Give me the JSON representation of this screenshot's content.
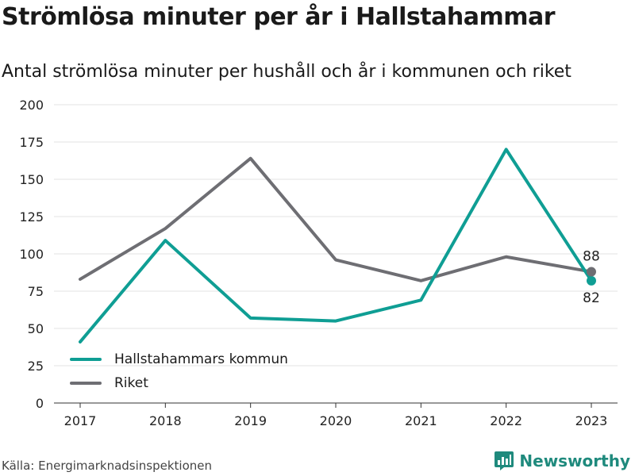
{
  "header": {
    "title": "Strömlösa minuter per år i Hallstahammar",
    "subtitle": "Antal strömlösa minuter per hushåll och år i kommunen och riket"
  },
  "footer": {
    "source": "Källa: Energimarknadsinspektionen",
    "brand": "Newsworthy",
    "brand_color": "#1f8a7d"
  },
  "chart_data": {
    "type": "line",
    "title": "Strömlösa minuter per år i Hallstahammar",
    "subtitle": "Antal strömlösa minuter per hushåll och år i kommunen och riket",
    "x": [
      "2017",
      "2018",
      "2019",
      "2020",
      "2021",
      "2022",
      "2023"
    ],
    "ylim": [
      0,
      200
    ],
    "yticks": [
      0,
      25,
      50,
      75,
      100,
      125,
      150,
      175,
      200
    ],
    "grid": true,
    "legend_position": "bottom-left",
    "series": [
      {
        "name": "Hallstahammars kommun",
        "color": "#0f9e94",
        "values": [
          41,
          109,
          57,
          55,
          69,
          170,
          82
        ],
        "end_label": "82"
      },
      {
        "name": "Riket",
        "color": "#6e6e73",
        "values": [
          83,
          117,
          164,
          96,
          82,
          98,
          88
        ],
        "end_label": "88"
      }
    ]
  }
}
